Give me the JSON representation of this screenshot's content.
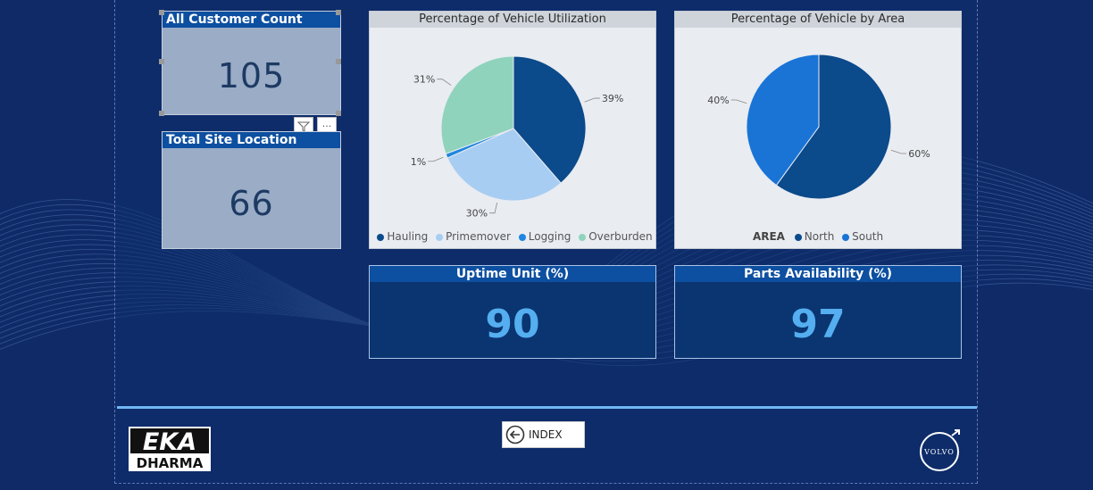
{
  "kpi_customers": {
    "title": "All Customer Count",
    "value": "105"
  },
  "kpi_sites": {
    "title": "Total Site Location",
    "value": "66"
  },
  "kpi_uptime": {
    "title": "Uptime Unit (%)",
    "value": "90"
  },
  "kpi_parts": {
    "title": "Parts Availability (%)",
    "value": "97"
  },
  "footer": {
    "index_label": "INDEX",
    "logo_line1": "EKA",
    "logo_line2": "DHARMA",
    "brand_text": "VOLVO"
  },
  "colors": {
    "hauling": "#0b4a8b",
    "primemover": "#a8cdf2",
    "logging": "#1e86e0",
    "overburden": "#8fd3bd",
    "north": "#0b4a8b",
    "south": "#1a74d6",
    "accent": "#6eb7f4"
  },
  "icons": {
    "filter": "filter-icon",
    "more": "more-options-icon",
    "back": "back-arrow-icon"
  },
  "chart_data": [
    {
      "type": "pie",
      "title": "Percentage of Vehicle Utilization",
      "categories": [
        "Hauling",
        "Primemover",
        "Logging",
        "Overburden"
      ],
      "values": [
        39,
        30,
        1,
        31
      ],
      "labels": [
        "39%",
        "30%",
        "1%",
        "31%"
      ],
      "legend": "bottom"
    },
    {
      "type": "pie",
      "title": "Percentage of Vehicle by Area",
      "legend_title": "AREA",
      "categories": [
        "North",
        "South"
      ],
      "values": [
        60,
        40
      ],
      "labels": [
        "60%",
        "40%"
      ],
      "legend": "bottom"
    }
  ]
}
